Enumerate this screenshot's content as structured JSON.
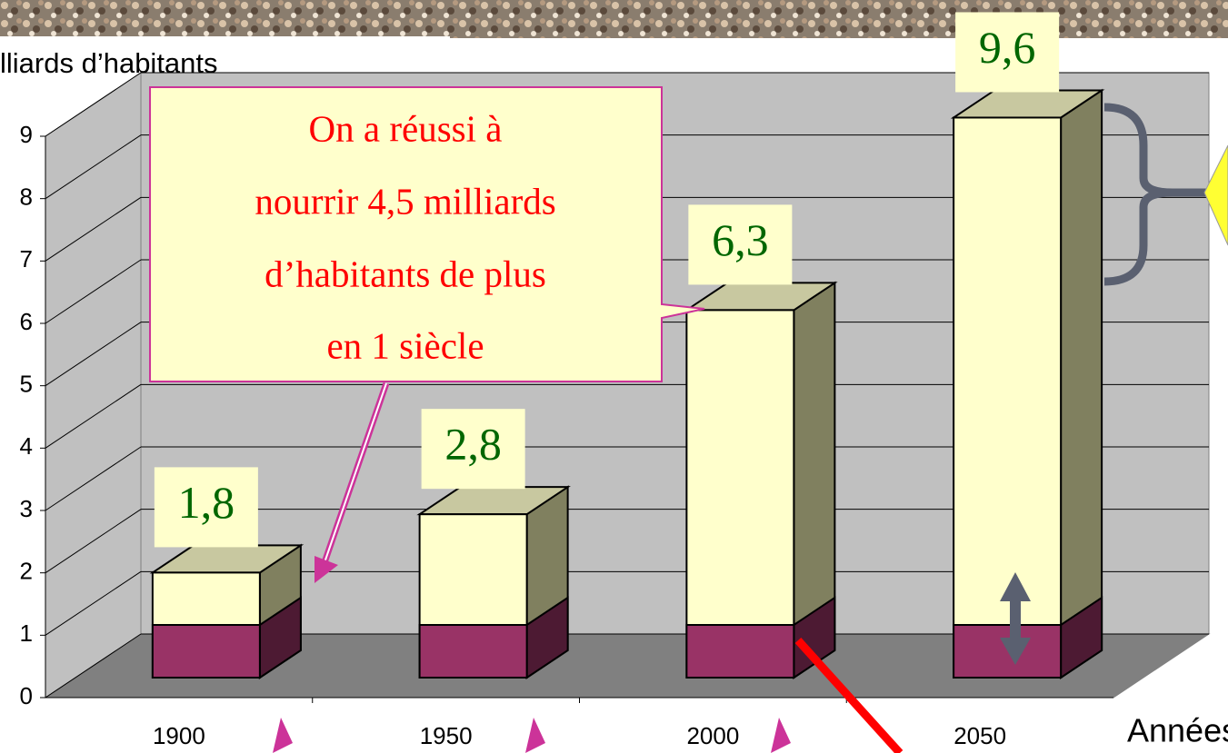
{
  "chart_data": {
    "type": "bar",
    "y_axis_title": "lliards d’habitants",
    "x_axis_title": "Années",
    "categories": [
      "1900",
      "1950",
      "2000",
      "2050"
    ],
    "values": [
      1.8,
      2.8,
      6.3,
      9.6
    ],
    "value_labels": [
      "1,8",
      "2,8",
      "6,3",
      "9,6"
    ],
    "color": "#ffffcc",
    "ylim": [
      0,
      9
    ],
    "yticks": [
      0,
      1,
      2,
      3,
      4,
      5,
      6,
      7,
      8,
      9
    ],
    "grid": true,
    "annotation": [
      "On a réussi à",
      "nourrir 4,5 milliards",
      "d’habitants de plus",
      "en 1 siècle"
    ]
  }
}
